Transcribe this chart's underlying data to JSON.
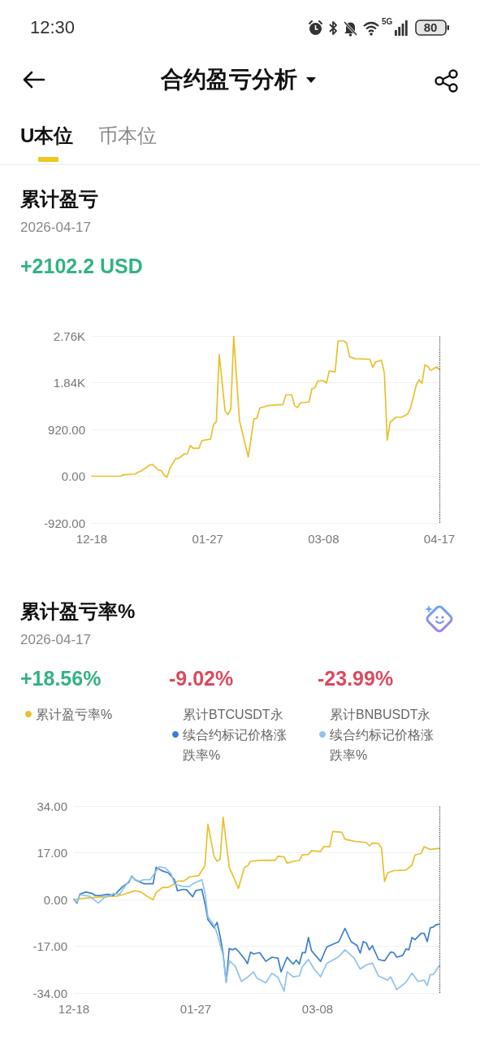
{
  "chart_data": [
    {
      "type": "line",
      "title": "累计盈亏",
      "subtitle": "2026-04-17",
      "annotations": [
        "12:30",
        "5G",
        "80",
        "合约盈亏分析",
        "U本位",
        "币本位",
        "+2102.2 USD"
      ],
      "x": [
        "2025-12-18",
        "2025-12-28",
        "2025-12-29",
        "2026-01-02",
        "2026-01-03",
        "2026-01-04",
        "2026-01-07",
        "2026-01-08",
        "2026-01-10",
        "2026-01-11",
        "2026-01-12",
        "2026-01-13",
        "2026-01-14",
        "2026-01-16",
        "2026-01-17",
        "2026-01-19",
        "2026-01-20",
        "2026-01-21",
        "2026-01-22",
        "2026-01-24",
        "2026-01-25",
        "2026-01-28",
        "2026-01-29",
        "2026-01-30",
        "2026-01-31",
        "2026-02-02",
        "2026-02-03",
        "2026-02-04",
        "2026-02-05",
        "2026-02-07",
        "2026-02-10",
        "2026-02-12",
        "2026-02-13",
        "2026-02-14",
        "2026-02-17",
        "2026-02-22",
        "2026-02-23",
        "2026-02-25",
        "2026-02-26",
        "2026-02-27",
        "2026-02-28",
        "2026-03-03",
        "2026-03-04",
        "2026-03-05",
        "2026-03-06",
        "2026-03-08",
        "2026-03-09",
        "2026-03-10",
        "2026-03-12",
        "2026-03-13",
        "2026-03-15",
        "2026-03-16",
        "2026-03-17",
        "2026-03-19",
        "2026-03-24",
        "2026-03-25",
        "2026-03-26",
        "2026-03-28",
        "2026-03-29",
        "2026-03-30",
        "2026-03-31",
        "2026-04-02",
        "2026-04-04",
        "2026-04-06",
        "2026-04-07",
        "2026-04-09",
        "2026-04-10",
        "2026-04-11",
        "2026-04-12",
        "2026-04-13",
        "2026-04-14",
        "2026-04-16",
        "2026-04-17"
      ],
      "values": [
        0,
        0,
        30,
        40,
        80,
        100,
        220,
        230,
        120,
        110,
        20,
        -20,
        160,
        350,
        350,
        440,
        440,
        600,
        550,
        550,
        700,
        730,
        1010,
        1070,
        2390,
        1290,
        1210,
        1320,
        2750,
        1090,
        380,
        1130,
        1140,
        1340,
        1390,
        1410,
        1600,
        1600,
        1390,
        1350,
        1440,
        1460,
        1720,
        1740,
        1870,
        1880,
        1830,
        2070,
        2050,
        2660,
        2660,
        2620,
        2350,
        2310,
        2300,
        2140,
        2250,
        2280,
        2030,
        710,
        1060,
        1160,
        1160,
        1220,
        1330,
        1790,
        1900,
        1830,
        2190,
        2160,
        2080,
        2150,
        2100
      ],
      "color": "#e6c12e",
      "xlim": [
        "2025-12-18",
        "2026-04-17"
      ],
      "xticks": [
        {
          "value": "2025-12-18",
          "label": "12-18"
        },
        {
          "value": "2026-01-27",
          "label": "01-27"
        },
        {
          "value": "2026-03-08",
          "label": "03-08"
        },
        {
          "value": "2026-04-17",
          "label": "04-17"
        }
      ],
      "ylim": [
        -920,
        2760
      ],
      "yticks": [
        {
          "value": -920,
          "label": "-920.00"
        },
        {
          "value": 0,
          "label": "0.00"
        },
        {
          "value": 920,
          "label": "920.00"
        },
        {
          "value": 1840,
          "label": "1.84K"
        },
        {
          "value": 2760,
          "label": "2.76K"
        }
      ],
      "ref_lines": [
        {
          "axis": "x",
          "value": "2026-04-17",
          "color": "#444444",
          "line_style": "dotted"
        }
      ],
      "grid": "y"
    },
    {
      "type": "line",
      "title": "累计盈亏率%",
      "subtitle": "2026-04-17",
      "annotations": [
        "+18.56%",
        "-9.02%",
        "-23.99%"
      ],
      "legend": "top",
      "series": [
        {
          "name": "累计盈亏率%",
          "color": "#e6c12e",
          "x": [
            "2025-12-18",
            "2025-12-21",
            "2025-12-28",
            "2026-01-01",
            "2026-01-03",
            "2026-01-07",
            "2026-01-09",
            "2026-01-11",
            "2026-01-13",
            "2026-01-14",
            "2026-01-16",
            "2026-01-18",
            "2026-01-20",
            "2026-01-21",
            "2026-01-23",
            "2026-01-25",
            "2026-01-28",
            "2026-01-30",
            "2026-01-31",
            "2026-02-02",
            "2026-02-03",
            "2026-02-04",
            "2026-02-05",
            "2026-02-07",
            "2026-02-10",
            "2026-02-12",
            "2026-02-13",
            "2026-02-14",
            "2026-02-17",
            "2026-02-22",
            "2026-02-23",
            "2026-02-25",
            "2026-02-26",
            "2026-02-28",
            "2026-03-02",
            "2026-03-03",
            "2026-03-05",
            "2026-03-06",
            "2026-03-09",
            "2026-03-10",
            "2026-03-12",
            "2026-03-13",
            "2026-03-16",
            "2026-03-17",
            "2026-03-20",
            "2026-03-24",
            "2026-03-25",
            "2026-03-26",
            "2026-03-28",
            "2026-03-29",
            "2026-03-30",
            "2026-03-31",
            "2026-04-02",
            "2026-04-06",
            "2026-04-08",
            "2026-04-09",
            "2026-04-11",
            "2026-04-12",
            "2026-04-14",
            "2026-04-17"
          ],
          "values": [
            0,
            0.4,
            1.0,
            1.2,
            1.7,
            3.2,
            2.7,
            1.2,
            -0.1,
            2.5,
            4.3,
            4.4,
            5.7,
            6.7,
            6.7,
            8.2,
            8.7,
            12.2,
            27.4,
            15.7,
            13.9,
            14.7,
            29.9,
            11.7,
            4.0,
            11.7,
            12.2,
            13.9,
            14.2,
            14.2,
            15.7,
            15.5,
            13.2,
            13.9,
            14.2,
            16.2,
            16.4,
            17.7,
            17.5,
            19.2,
            19.2,
            24.7,
            24.4,
            21.9,
            21.2,
            20.7,
            19.5,
            20.5,
            20.4,
            18.7,
            6.5,
            9.7,
            10.5,
            10.7,
            12.5,
            16.2,
            16.7,
            19.2,
            18.2,
            18.6
          ]
        },
        {
          "name": "累计BTCUSDT永续合约标记价格涨跌率%",
          "color": "#3a7fd0",
          "x": [
            "2025-12-18",
            "2025-12-19",
            "2025-12-20",
            "2025-12-22",
            "2025-12-24",
            "2025-12-25",
            "2025-12-27",
            "2025-12-29",
            "2025-12-31",
            "2026-01-01",
            "2026-01-03",
            "2026-01-05",
            "2026-01-06",
            "2026-01-07",
            "2026-01-09",
            "2026-01-10",
            "2026-01-13",
            "2026-01-14",
            "2026-01-16",
            "2026-01-18",
            "2026-01-20",
            "2026-01-21",
            "2026-01-23",
            "2026-01-24",
            "2026-01-26",
            "2026-01-27",
            "2026-01-29",
            "2026-01-30",
            "2026-01-31",
            "2026-02-02",
            "2026-02-03",
            "2026-02-04",
            "2026-02-05",
            "2026-02-06",
            "2026-02-07",
            "2026-02-08",
            "2026-02-09",
            "2026-02-10",
            "2026-02-12",
            "2026-02-13",
            "2026-02-14",
            "2026-02-15",
            "2026-02-17",
            "2026-02-19",
            "2026-02-21",
            "2026-02-23",
            "2026-02-24",
            "2026-02-26",
            "2026-02-27",
            "2026-02-28",
            "2026-03-01",
            "2026-03-02",
            "2026-03-03",
            "2026-03-04",
            "2026-03-05",
            "2026-03-06",
            "2026-03-09",
            "2026-03-11",
            "2026-03-15",
            "2026-03-17",
            "2026-03-19",
            "2026-03-21",
            "2026-03-22",
            "2026-03-23",
            "2026-03-24",
            "2026-03-25",
            "2026-03-26",
            "2026-03-28",
            "2026-03-30",
            "2026-04-01",
            "2026-04-02",
            "2026-04-03",
            "2026-04-05",
            "2026-04-06",
            "2026-04-07",
            "2026-04-08",
            "2026-04-09",
            "2026-04-11",
            "2026-04-12",
            "2026-04-13",
            "2026-04-14",
            "2026-04-15",
            "2026-04-16",
            "2026-04-17"
          ],
          "values": [
            0,
            -1.3,
            2.0,
            2.7,
            2.2,
            1.4,
            1.5,
            1.9,
            1.5,
            2.4,
            4.7,
            6.2,
            8.5,
            7.2,
            6.2,
            5.7,
            5.7,
            11.7,
            10.4,
            9.7,
            7.2,
            3.2,
            3.7,
            3.5,
            1.0,
            3.2,
            3.7,
            -1.3,
            -7.3,
            -10.3,
            -8.3,
            -13.3,
            -19.8,
            -29.8,
            -17.8,
            -18.3,
            -17.8,
            -18.8,
            -21.6,
            -23.3,
            -19.1,
            -19.8,
            -19.3,
            -22.5,
            -21.0,
            -21.3,
            -26.3,
            -21.0,
            -22.3,
            -23.5,
            -22.0,
            -23.5,
            -19.3,
            -19.3,
            -13.8,
            -18.6,
            -22.5,
            -17.3,
            -15.3,
            -10.5,
            -15.3,
            -16.8,
            -19.5,
            -15.3,
            -15.8,
            -18.3,
            -16.8,
            -21.8,
            -22.3,
            -19.1,
            -19.3,
            -21.0,
            -20.3,
            -18.0,
            -18.3,
            -13.8,
            -14.6,
            -12.3,
            -12.3,
            -15.3,
            -10.3,
            -10.0,
            -9.1,
            -9.0
          ]
        },
        {
          "name": "累计BNBUSDT永续合约标记价格涨跌率%",
          "color": "#8fc3e9",
          "x": [
            "2025-12-18",
            "2025-12-19",
            "2025-12-20",
            "2025-12-23",
            "2025-12-26",
            "2025-12-28",
            "2025-12-30",
            "2025-12-31",
            "2026-01-02",
            "2026-01-04",
            "2026-01-06",
            "2026-01-08",
            "2026-01-10",
            "2026-01-12",
            "2026-01-15",
            "2026-01-17",
            "2026-01-19",
            "2026-01-20",
            "2026-01-23",
            "2026-01-25",
            "2026-01-26",
            "2026-01-29",
            "2026-01-30",
            "2026-01-31",
            "2026-02-02",
            "2026-02-03",
            "2026-02-05",
            "2026-02-06",
            "2026-02-07",
            "2026-02-09",
            "2026-02-11",
            "2026-02-13",
            "2026-02-15",
            "2026-02-16",
            "2026-02-19",
            "2026-02-21",
            "2026-02-23",
            "2026-02-25",
            "2026-02-26",
            "2026-02-28",
            "2026-03-02",
            "2026-03-03",
            "2026-03-05",
            "2026-03-07",
            "2026-03-09",
            "2026-03-11",
            "2026-03-15",
            "2026-03-17",
            "2026-03-20",
            "2026-03-22",
            "2026-03-24",
            "2026-03-26",
            "2026-03-28",
            "2026-03-31",
            "2026-04-01",
            "2026-04-03",
            "2026-04-06",
            "2026-04-08",
            "2026-04-10",
            "2026-04-12",
            "2026-04-13",
            "2026-04-14",
            "2026-04-15",
            "2026-04-17"
          ],
          "values": [
            0,
            -1.0,
            1.7,
            1.2,
            -1.3,
            0.7,
            1.5,
            2.2,
            1.9,
            5.2,
            8.2,
            6.5,
            7.2,
            7.2,
            11.9,
            11.5,
            9.2,
            5.7,
            4.7,
            4.7,
            5.7,
            7.2,
            2.7,
            -6.3,
            -9.3,
            -12.3,
            -20.3,
            -30.3,
            -22.3,
            -24.3,
            -29.8,
            -28.3,
            -26.3,
            -28.5,
            -30.3,
            -26.8,
            -28.3,
            -33.3,
            -26.3,
            -28.1,
            -27.8,
            -24.5,
            -21.8,
            -25.5,
            -28.1,
            -23.3,
            -20.8,
            -18.3,
            -21.3,
            -25.3,
            -23.8,
            -23.1,
            -27.8,
            -29.3,
            -28.1,
            -32.8,
            -30.1,
            -26.8,
            -29.8,
            -29.3,
            -31.3,
            -27.3,
            -27.3,
            -24.0
          ]
        }
      ],
      "xlim": [
        "2025-12-18",
        "2026-04-17"
      ],
      "xticks": [
        {
          "value": "2025-12-18",
          "label": "12-18"
        },
        {
          "value": "2026-01-27",
          "label": "01-27"
        },
        {
          "value": "2026-03-08",
          "label": "03-08"
        }
      ],
      "ylim": [
        -34,
        34
      ],
      "yticks": [
        {
          "value": -34,
          "label": "-34.00"
        },
        {
          "value": -17,
          "label": "-17.00"
        },
        {
          "value": 0,
          "label": "0.00"
        },
        {
          "value": 17,
          "label": "17.00"
        },
        {
          "value": 34,
          "label": "34.00"
        }
      ],
      "ref_lines": [
        {
          "axis": "x",
          "value": "2026-04-17",
          "color": "#444444",
          "line_style": "dotted"
        }
      ],
      "grid": "y"
    }
  ]
}
